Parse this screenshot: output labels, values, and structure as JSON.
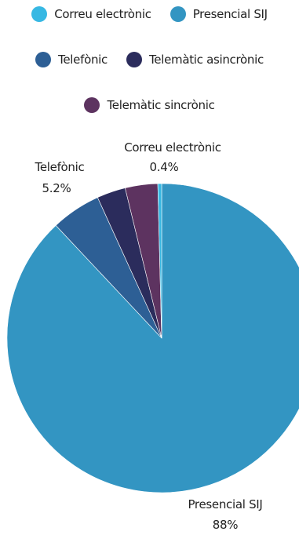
{
  "chart_data": {
    "type": "pie",
    "legend_position": "top",
    "slices": [
      {
        "name": "Presencial SIJ",
        "value": 88,
        "label": "88%",
        "color": "#3395c2"
      },
      {
        "name": "Telefònic",
        "value": 5.2,
        "label": "5.2%",
        "color": "#2d5f95"
      },
      {
        "name": "Telemàtic asincrònic",
        "value": 3.0,
        "label": "",
        "color": "#2b2c5c"
      },
      {
        "name": "Telemàtic sincrònic",
        "value": 3.4,
        "label": "",
        "color": "#5d3360"
      },
      {
        "name": "Correu electrònic",
        "value": 0.4,
        "label": "0.4%",
        "color": "#37b8e3"
      }
    ],
    "legend": [
      {
        "name": "Correu electrònic",
        "color": "#37b8e3"
      },
      {
        "name": "Presencial SIJ",
        "color": "#3395c2"
      },
      {
        "name": "Telefònic",
        "color": "#2d5f95"
      },
      {
        "name": "Telemàtic asincrònic",
        "color": "#2b2c5c"
      },
      {
        "name": "Telemàtic sincrònic",
        "color": "#5d3360"
      }
    ]
  }
}
